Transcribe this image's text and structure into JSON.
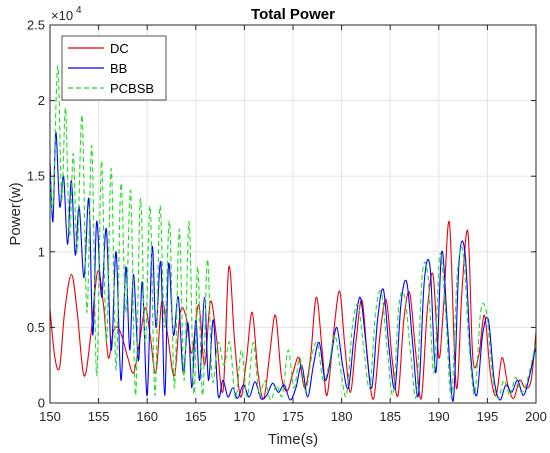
{
  "chart_data": {
    "type": "line",
    "title": "Total Power",
    "xlabel": "Time(s)",
    "ylabel": "Power(w)",
    "y_exponent_label": "×10",
    "y_exponent_power": "4",
    "y_scale": 10000,
    "xlim": [
      150,
      200
    ],
    "ylim": [
      0,
      25000
    ],
    "xticks": [
      150,
      155,
      160,
      165,
      170,
      175,
      180,
      185,
      190,
      195,
      200
    ],
    "yticks": [
      0,
      0.5,
      1,
      1.5,
      2,
      2.5
    ],
    "ytick_labels": [
      "0",
      "0.5",
      "1",
      "1.5",
      "2",
      "2.5"
    ],
    "grid": true,
    "legend_position": "top-left",
    "series": [
      {
        "name": "DC",
        "color": "#e8000b",
        "dash": "solid",
        "x": [
          150.0,
          150.5,
          151.0,
          151.5,
          152.2,
          152.8,
          153.5,
          154.2,
          154.9,
          155.5,
          156.0,
          156.5,
          157.0,
          157.5,
          158.0,
          158.6,
          159.2,
          159.8,
          160.3,
          160.9,
          161.5,
          162.1,
          162.8,
          163.4,
          164.0,
          164.6,
          165.3,
          165.9,
          166.5,
          167.1,
          167.8,
          168.4,
          169.0,
          169.6,
          170.2,
          170.8,
          171.4,
          172.0,
          172.6,
          173.2,
          173.8,
          174.4,
          175.0,
          175.6,
          176.2,
          176.8,
          177.4,
          178.0,
          178.5,
          179.2,
          179.8,
          180.3,
          180.9,
          181.5,
          182.1,
          182.7,
          183.3,
          184.0,
          184.6,
          185.2,
          185.8,
          186.4,
          187.0,
          187.6,
          188.2,
          188.8,
          189.4,
          190.0,
          190.5,
          191.1,
          191.8,
          192.4,
          193.0,
          193.5,
          194.1,
          194.7,
          195.3,
          195.9,
          196.5,
          197.1,
          197.7,
          198.3,
          198.9,
          199.5,
          200.0
        ],
        "values": [
          6200,
          3000,
          2400,
          6000,
          8500,
          6000,
          1800,
          4500,
          8700,
          6500,
          3000,
          4700,
          5000,
          4200,
          3000,
          2000,
          4000,
          6300,
          4500,
          2000,
          6700,
          4500,
          1800,
          6000,
          5700,
          3300,
          6500,
          2500,
          6700,
          4500,
          800,
          9000,
          4000,
          400,
          2800,
          6000,
          2000,
          300,
          3200,
          5800,
          1800,
          800,
          2000,
          3000,
          1000,
          3000,
          7000,
          3500,
          500,
          4800,
          7400,
          4000,
          700,
          4200,
          6800,
          2600,
          300,
          4800,
          6800,
          2900,
          500,
          5500,
          7300,
          3500,
          300,
          6000,
          8500,
          3000,
          6500,
          11900,
          1000,
          7600,
          11300,
          3000,
          3100,
          5800,
          2000,
          500,
          3000,
          1200,
          300,
          1500,
          1000,
          1500,
          4700
        ]
      },
      {
        "name": "BB",
        "color": "#0000ff",
        "dash": "solid",
        "x": [
          150.0,
          150.3,
          150.6,
          151.0,
          151.4,
          151.8,
          152.2,
          152.6,
          153.0,
          153.5,
          154.0,
          154.4,
          154.8,
          155.3,
          155.8,
          156.3,
          156.8,
          157.3,
          157.8,
          158.2,
          158.6,
          159.1,
          159.5,
          160.0,
          160.5,
          160.9,
          161.4,
          161.8,
          162.2,
          162.7,
          163.2,
          163.7,
          164.2,
          164.6,
          165.0,
          165.4,
          165.9,
          166.3,
          166.8,
          167.3,
          167.8,
          168.3,
          168.8,
          169.3,
          169.9,
          170.5,
          171.1,
          171.7,
          172.3,
          172.9,
          173.5,
          174.1,
          174.7,
          175.3,
          175.9,
          176.5,
          177.1,
          177.7,
          178.3,
          178.9,
          179.5,
          180.1,
          180.7,
          181.3,
          181.9,
          182.5,
          183.1,
          183.7,
          184.3,
          184.9,
          185.5,
          186.1,
          186.7,
          187.3,
          187.9,
          188.5,
          189.1,
          189.7,
          190.3,
          190.9,
          191.5,
          192.1,
          192.7,
          193.3,
          193.9,
          194.5,
          195.1,
          195.7,
          196.3,
          196.9,
          197.5,
          198.1,
          198.7,
          199.3,
          200.0
        ],
        "values": [
          16000,
          12000,
          17900,
          13000,
          15000,
          10500,
          14700,
          9800,
          13000,
          8300,
          13500,
          4500,
          12000,
          7000,
          11500,
          3500,
          10000,
          1500,
          9000,
          3500,
          8500,
          2800,
          8000,
          500,
          10300,
          5000,
          9300,
          500,
          9200,
          4500,
          7000,
          2000,
          5300,
          1000,
          5500,
          1500,
          7000,
          1500,
          5500,
          500,
          1500,
          400,
          1000,
          300,
          1200,
          400,
          1400,
          300,
          500,
          1300,
          700,
          1200,
          200,
          1000,
          2500,
          400,
          2500,
          4000,
          1500,
          3000,
          5000,
          2500,
          1000,
          4500,
          7000,
          4000,
          1000,
          5500,
          7500,
          3500,
          1000,
          6500,
          8000,
          4000,
          500,
          8000,
          9000,
          2000,
          10000,
          5000,
          200,
          9500,
          9900,
          3000,
          500,
          4500,
          5500,
          1500,
          200,
          1200,
          700,
          1500,
          500,
          1700,
          3800
        ]
      },
      {
        "name": "PCBSB",
        "color": "#22dd22",
        "dash": "dashed",
        "x": [
          150.0,
          150.3,
          150.8,
          151.2,
          151.6,
          152.0,
          152.4,
          152.8,
          153.3,
          153.8,
          154.3,
          154.8,
          155.3,
          155.8,
          156.3,
          156.8,
          157.3,
          157.8,
          158.3,
          158.8,
          159.3,
          159.8,
          160.3,
          160.8,
          161.3,
          161.8,
          162.3,
          162.8,
          163.3,
          163.8,
          164.3,
          164.8,
          165.2,
          165.7,
          166.2,
          166.7,
          167.3,
          167.9,
          168.5,
          169.1,
          169.7,
          170.3,
          170.9,
          171.5,
          172.1,
          172.7,
          173.3,
          173.9,
          174.5,
          175.1,
          175.7,
          176.3,
          176.9,
          177.5,
          178.1,
          178.7,
          179.3,
          179.9,
          180.5,
          181.1,
          181.7,
          182.3,
          182.9,
          183.5,
          184.1,
          184.7,
          185.3,
          185.9,
          186.5,
          187.1,
          187.7,
          188.3,
          188.9,
          189.5,
          190.1,
          190.7,
          191.3,
          191.9,
          192.5,
          193.1,
          193.7,
          194.3,
          194.9,
          195.5,
          196.1,
          196.7,
          197.3,
          197.9,
          198.5,
          199.1,
          200.0
        ],
        "values": [
          15000,
          13000,
          22300,
          13500,
          19500,
          11000,
          16500,
          10000,
          19000,
          6000,
          17000,
          1800,
          16000,
          4000,
          15500,
          2200,
          14500,
          6000,
          14000,
          500,
          13500,
          4000,
          13000,
          500,
          13000,
          5000,
          12000,
          1000,
          11500,
          1500,
          12000,
          600,
          9000,
          500,
          9500,
          1500,
          4000,
          2500,
          4000,
          300,
          3500,
          400,
          4000,
          600,
          1500,
          200,
          1200,
          500,
          3500,
          1000,
          3000,
          800,
          3000,
          4000,
          1500,
          2500,
          4500,
          2200,
          500,
          5000,
          6500,
          3500,
          1000,
          6000,
          7300,
          3500,
          600,
          6500,
          7000,
          3300,
          500,
          8500,
          8300,
          2000,
          9800,
          6000,
          400,
          8500,
          10000,
          4000,
          600,
          6000,
          6000,
          2000,
          300,
          1500,
          500,
          1700,
          700,
          1500,
          4000
        ]
      }
    ]
  }
}
